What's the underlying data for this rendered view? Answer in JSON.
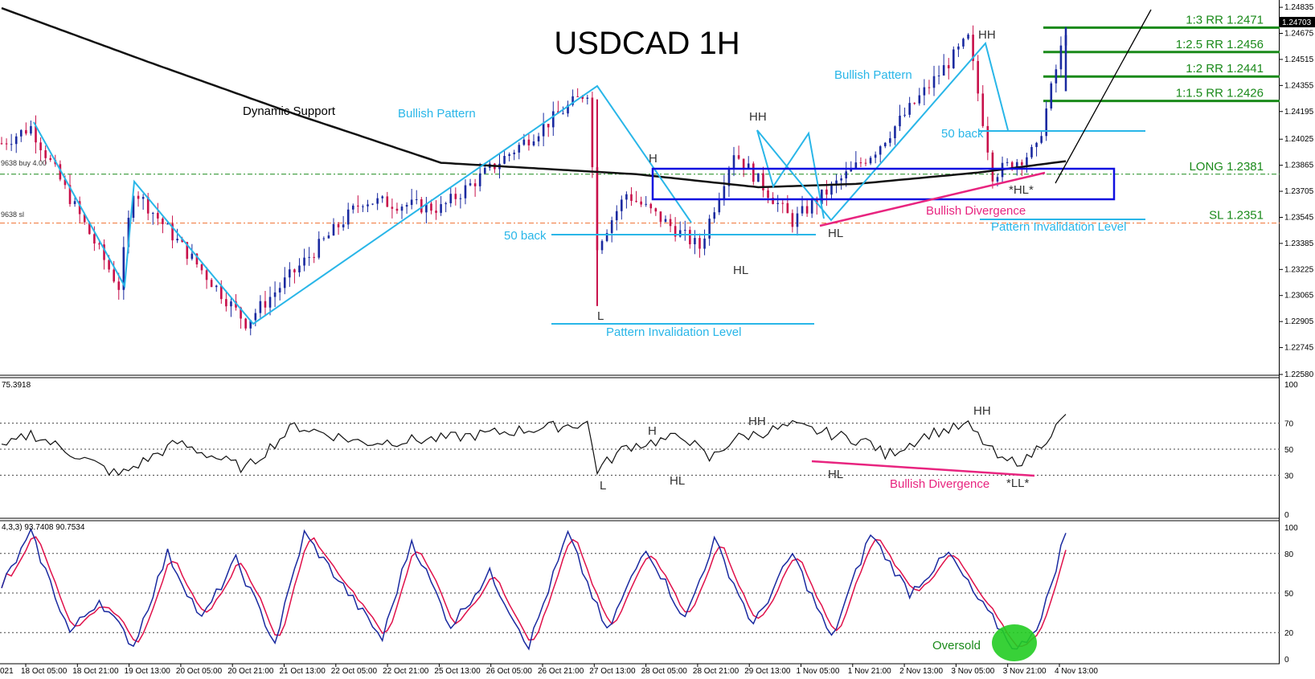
{
  "chart_data": [
    {
      "type": "candlestick",
      "title": "USDCAD 1H",
      "series_note": "Hourly candlesticks with a moving-average line labeled Dynamic Support",
      "ylim": [
        1.2258,
        1.2487
      ],
      "y_ticks": [
        "1.24835",
        "1.24675",
        "1.24515",
        "1.24355",
        "1.24195",
        "1.24025",
        "1.23865",
        "1.23705",
        "1.23545",
        "1.23385",
        "1.23225",
        "1.23065",
        "1.22905",
        "1.22745",
        "1.22580"
      ],
      "x_ticks": [
        "18 Oct 05:00",
        "18 Oct 21:00",
        "19 Oct 13:00",
        "20 Oct 05:00",
        "20 Oct 21:00",
        "21 Oct 13:00",
        "22 Oct 05:00",
        "22 Oct 21:00",
        "25 Oct 13:00",
        "26 Oct 05:00",
        "26 Oct 21:00",
        "27 Oct 13:00",
        "28 Oct 05:00",
        "28 Oct 21:00",
        "29 Oct 13:00",
        "1 Nov 05:00",
        "1 Nov 21:00",
        "2 Nov 13:00",
        "3 Nov 05:00",
        "3 Nov 21:00",
        "4 Nov 13:00"
      ],
      "x_tick_left_partial": "021",
      "current_price": "1.24703",
      "price_anchors": [
        {
          "i": 0,
          "p": 1.24
        },
        {
          "i": 6,
          "p": 1.241
        },
        {
          "i": 24,
          "p": 1.2312
        },
        {
          "i": 27,
          "p": 1.2372
        },
        {
          "i": 50,
          "p": 1.229
        },
        {
          "i": 74,
          "p": 1.2365
        },
        {
          "i": 90,
          "p": 1.236
        },
        {
          "i": 120,
          "p": 1.2432
        },
        {
          "i": 122,
          "p": 1.2338
        },
        {
          "i": 128,
          "p": 1.2369
        },
        {
          "i": 143,
          "p": 1.2336
        },
        {
          "i": 150,
          "p": 1.2395
        },
        {
          "i": 162,
          "p": 1.2352
        },
        {
          "i": 179,
          "p": 1.2396
        },
        {
          "i": 198,
          "p": 1.2464
        },
        {
          "i": 203,
          "p": 1.2381
        },
        {
          "i": 212,
          "p": 1.2396
        },
        {
          "i": 218,
          "p": 1.247
        }
      ],
      "ma_anchors": [
        {
          "i": 0,
          "p": 1.2483
        },
        {
          "i": 30,
          "p": 1.245
        },
        {
          "i": 60,
          "p": 1.2418
        },
        {
          "i": 90,
          "p": 1.2388
        },
        {
          "i": 130,
          "p": 1.2381
        },
        {
          "i": 155,
          "p": 1.2373
        },
        {
          "i": 175,
          "p": 1.2375
        },
        {
          "i": 200,
          "p": 1.2382
        },
        {
          "i": 218,
          "p": 1.2389
        }
      ],
      "levels": [
        {
          "label": "1:3 RR 1.2471",
          "price": 1.2471,
          "color": "#1a8a1a"
        },
        {
          "label": "1:2.5 RR 1.2456",
          "price": 1.2456,
          "color": "#1a8a1a"
        },
        {
          "label": "1:2 RR 1.2441",
          "price": 1.2441,
          "color": "#1a8a1a"
        },
        {
          "label": "1:1.5 RR 1.2426",
          "price": 1.2426,
          "color": "#1a8a1a"
        },
        {
          "label": "LONG 1.2381",
          "price": 1.2381,
          "color": "#1a8a1a"
        },
        {
          "label": "SL 1.2351",
          "price": 1.2351,
          "color": "#1a8a1a"
        }
      ],
      "left_level_labels": [
        "9638 buy 4.00",
        "9638 sl"
      ],
      "annotations": {
        "dynamic_support": "Dynamic Support",
        "bullish_pattern_1": "Bullish Pattern",
        "bullish_pattern_2": "Bullish Pattern",
        "fifty_back_1": "50 back",
        "fifty_back_2": "50 back",
        "invalidation_1": "Pattern Invalidation Level",
        "invalidation_2": "Pattern Invalidation Level",
        "bullish_divergence": "Bullish Divergence",
        "h": "H",
        "hh_1": "HH",
        "hh_2": "HH",
        "hl_1": "HL",
        "hl_2": "HL",
        "hl_star": "*HL*",
        "l": "L"
      }
    },
    {
      "type": "line",
      "name": "RSI",
      "value_label": "75.3918",
      "ylim": [
        0,
        100
      ],
      "y_ticks": [
        "100",
        "70",
        "50",
        "30",
        "0"
      ],
      "anchors": [
        {
          "i": 0,
          "v": 50
        },
        {
          "i": 6,
          "v": 62
        },
        {
          "i": 24,
          "v": 30
        },
        {
          "i": 36,
          "v": 55
        },
        {
          "i": 50,
          "v": 35
        },
        {
          "i": 60,
          "v": 68
        },
        {
          "i": 74,
          "v": 55
        },
        {
          "i": 90,
          "v": 58
        },
        {
          "i": 120,
          "v": 70
        },
        {
          "i": 122,
          "v": 34
        },
        {
          "i": 128,
          "v": 52
        },
        {
          "i": 140,
          "v": 60
        },
        {
          "i": 145,
          "v": 42
        },
        {
          "i": 150,
          "v": 58
        },
        {
          "i": 162,
          "v": 68
        },
        {
          "i": 178,
          "v": 55
        },
        {
          "i": 181,
          "v": 45
        },
        {
          "i": 190,
          "v": 62
        },
        {
          "i": 198,
          "v": 68
        },
        {
          "i": 205,
          "v": 40
        },
        {
          "i": 210,
          "v": 42
        },
        {
          "i": 218,
          "v": 75
        }
      ],
      "annotations": {
        "h": "H",
        "hh_1": "HH",
        "hh_2": "HH",
        "hl_1": "HL",
        "hl_2": "HL",
        "l": "L",
        "ll_star": "*LL*",
        "bullish_divergence": "Bullish Divergence"
      }
    },
    {
      "type": "line",
      "name": "Stochastic",
      "value_label": "4,3,3) 93.7408 90.7534",
      "ylim": [
        0,
        100
      ],
      "y_ticks": [
        "100",
        "80",
        "50",
        "20",
        "0"
      ],
      "series": [
        {
          "name": "main",
          "color": "#1a2aa0"
        },
        {
          "name": "signal",
          "color": "#e0104a"
        }
      ],
      "anchors": [
        {
          "i": 0,
          "v": 55
        },
        {
          "i": 6,
          "v": 95
        },
        {
          "i": 14,
          "v": 20
        },
        {
          "i": 20,
          "v": 45
        },
        {
          "i": 27,
          "v": 10
        },
        {
          "i": 34,
          "v": 80
        },
        {
          "i": 41,
          "v": 30
        },
        {
          "i": 48,
          "v": 75
        },
        {
          "i": 56,
          "v": 12
        },
        {
          "i": 62,
          "v": 95
        },
        {
          "i": 70,
          "v": 55
        },
        {
          "i": 78,
          "v": 15
        },
        {
          "i": 84,
          "v": 90
        },
        {
          "i": 92,
          "v": 25
        },
        {
          "i": 100,
          "v": 65
        },
        {
          "i": 108,
          "v": 10
        },
        {
          "i": 116,
          "v": 95
        },
        {
          "i": 124,
          "v": 20
        },
        {
          "i": 132,
          "v": 85
        },
        {
          "i": 140,
          "v": 30
        },
        {
          "i": 146,
          "v": 90
        },
        {
          "i": 154,
          "v": 25
        },
        {
          "i": 162,
          "v": 80
        },
        {
          "i": 170,
          "v": 15
        },
        {
          "i": 178,
          "v": 95
        },
        {
          "i": 186,
          "v": 50
        },
        {
          "i": 194,
          "v": 80
        },
        {
          "i": 200,
          "v": 45
        },
        {
          "i": 208,
          "v": 6
        },
        {
          "i": 213,
          "v": 30
        },
        {
          "i": 218,
          "v": 97
        }
      ],
      "annotations": {
        "oversold": "Oversold"
      }
    }
  ]
}
